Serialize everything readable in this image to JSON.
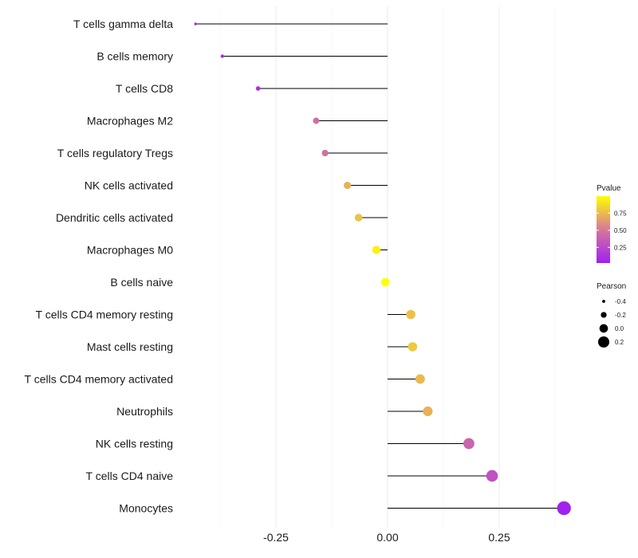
{
  "chart_data": {
    "type": "lollipop",
    "title": "",
    "xlabel": "",
    "ylabel": "",
    "xlim": [
      -0.43,
      0.4
    ],
    "x_ticks": [
      -0.25,
      0.0,
      0.25
    ],
    "x_tick_labels": [
      "-0.25",
      "0.00",
      "0.25"
    ],
    "grid": true,
    "categories": [
      "T cells gamma delta",
      "B cells memory",
      "T cells CD8",
      "Macrophages M2",
      "T cells regulatory  Tregs ",
      "NK cells activated",
      "Dendritic cells activated",
      "Macrophages M0",
      "B cells naive",
      "T cells CD4 memory resting",
      "Mast cells resting",
      "T cells CD4 memory activated",
      "Neutrophils",
      "NK cells resting",
      "T cells CD4 naive",
      "Monocytes"
    ],
    "pearson": [
      -0.43,
      -0.37,
      -0.29,
      -0.16,
      -0.14,
      -0.09,
      -0.065,
      -0.025,
      -0.005,
      0.052,
      0.056,
      0.073,
      0.09,
      0.182,
      0.234,
      0.395
    ],
    "pvalue": [
      0.02,
      0.08,
      0.13,
      0.45,
      0.47,
      0.72,
      0.78,
      0.95,
      1.0,
      0.78,
      0.8,
      0.75,
      0.72,
      0.4,
      0.3,
      0.03
    ],
    "legend": {
      "color_title": "Pvalue",
      "color_ticks": [
        0.25,
        0.5,
        0.75
      ],
      "color_tick_labels": [
        "0.25",
        "0.50",
        "0.75"
      ],
      "color_range": [
        0.02,
        1.0
      ],
      "size_title": "Pearson",
      "size_ticks": [
        -0.4,
        -0.2,
        0.0,
        0.2
      ],
      "size_tick_labels": [
        "-0.4",
        "-0.2",
        "0.0",
        "0.2"
      ],
      "placement": "right"
    },
    "colors": {
      "low": "#a020f0",
      "mid": "#d5789a",
      "high": "#ffff00"
    }
  }
}
